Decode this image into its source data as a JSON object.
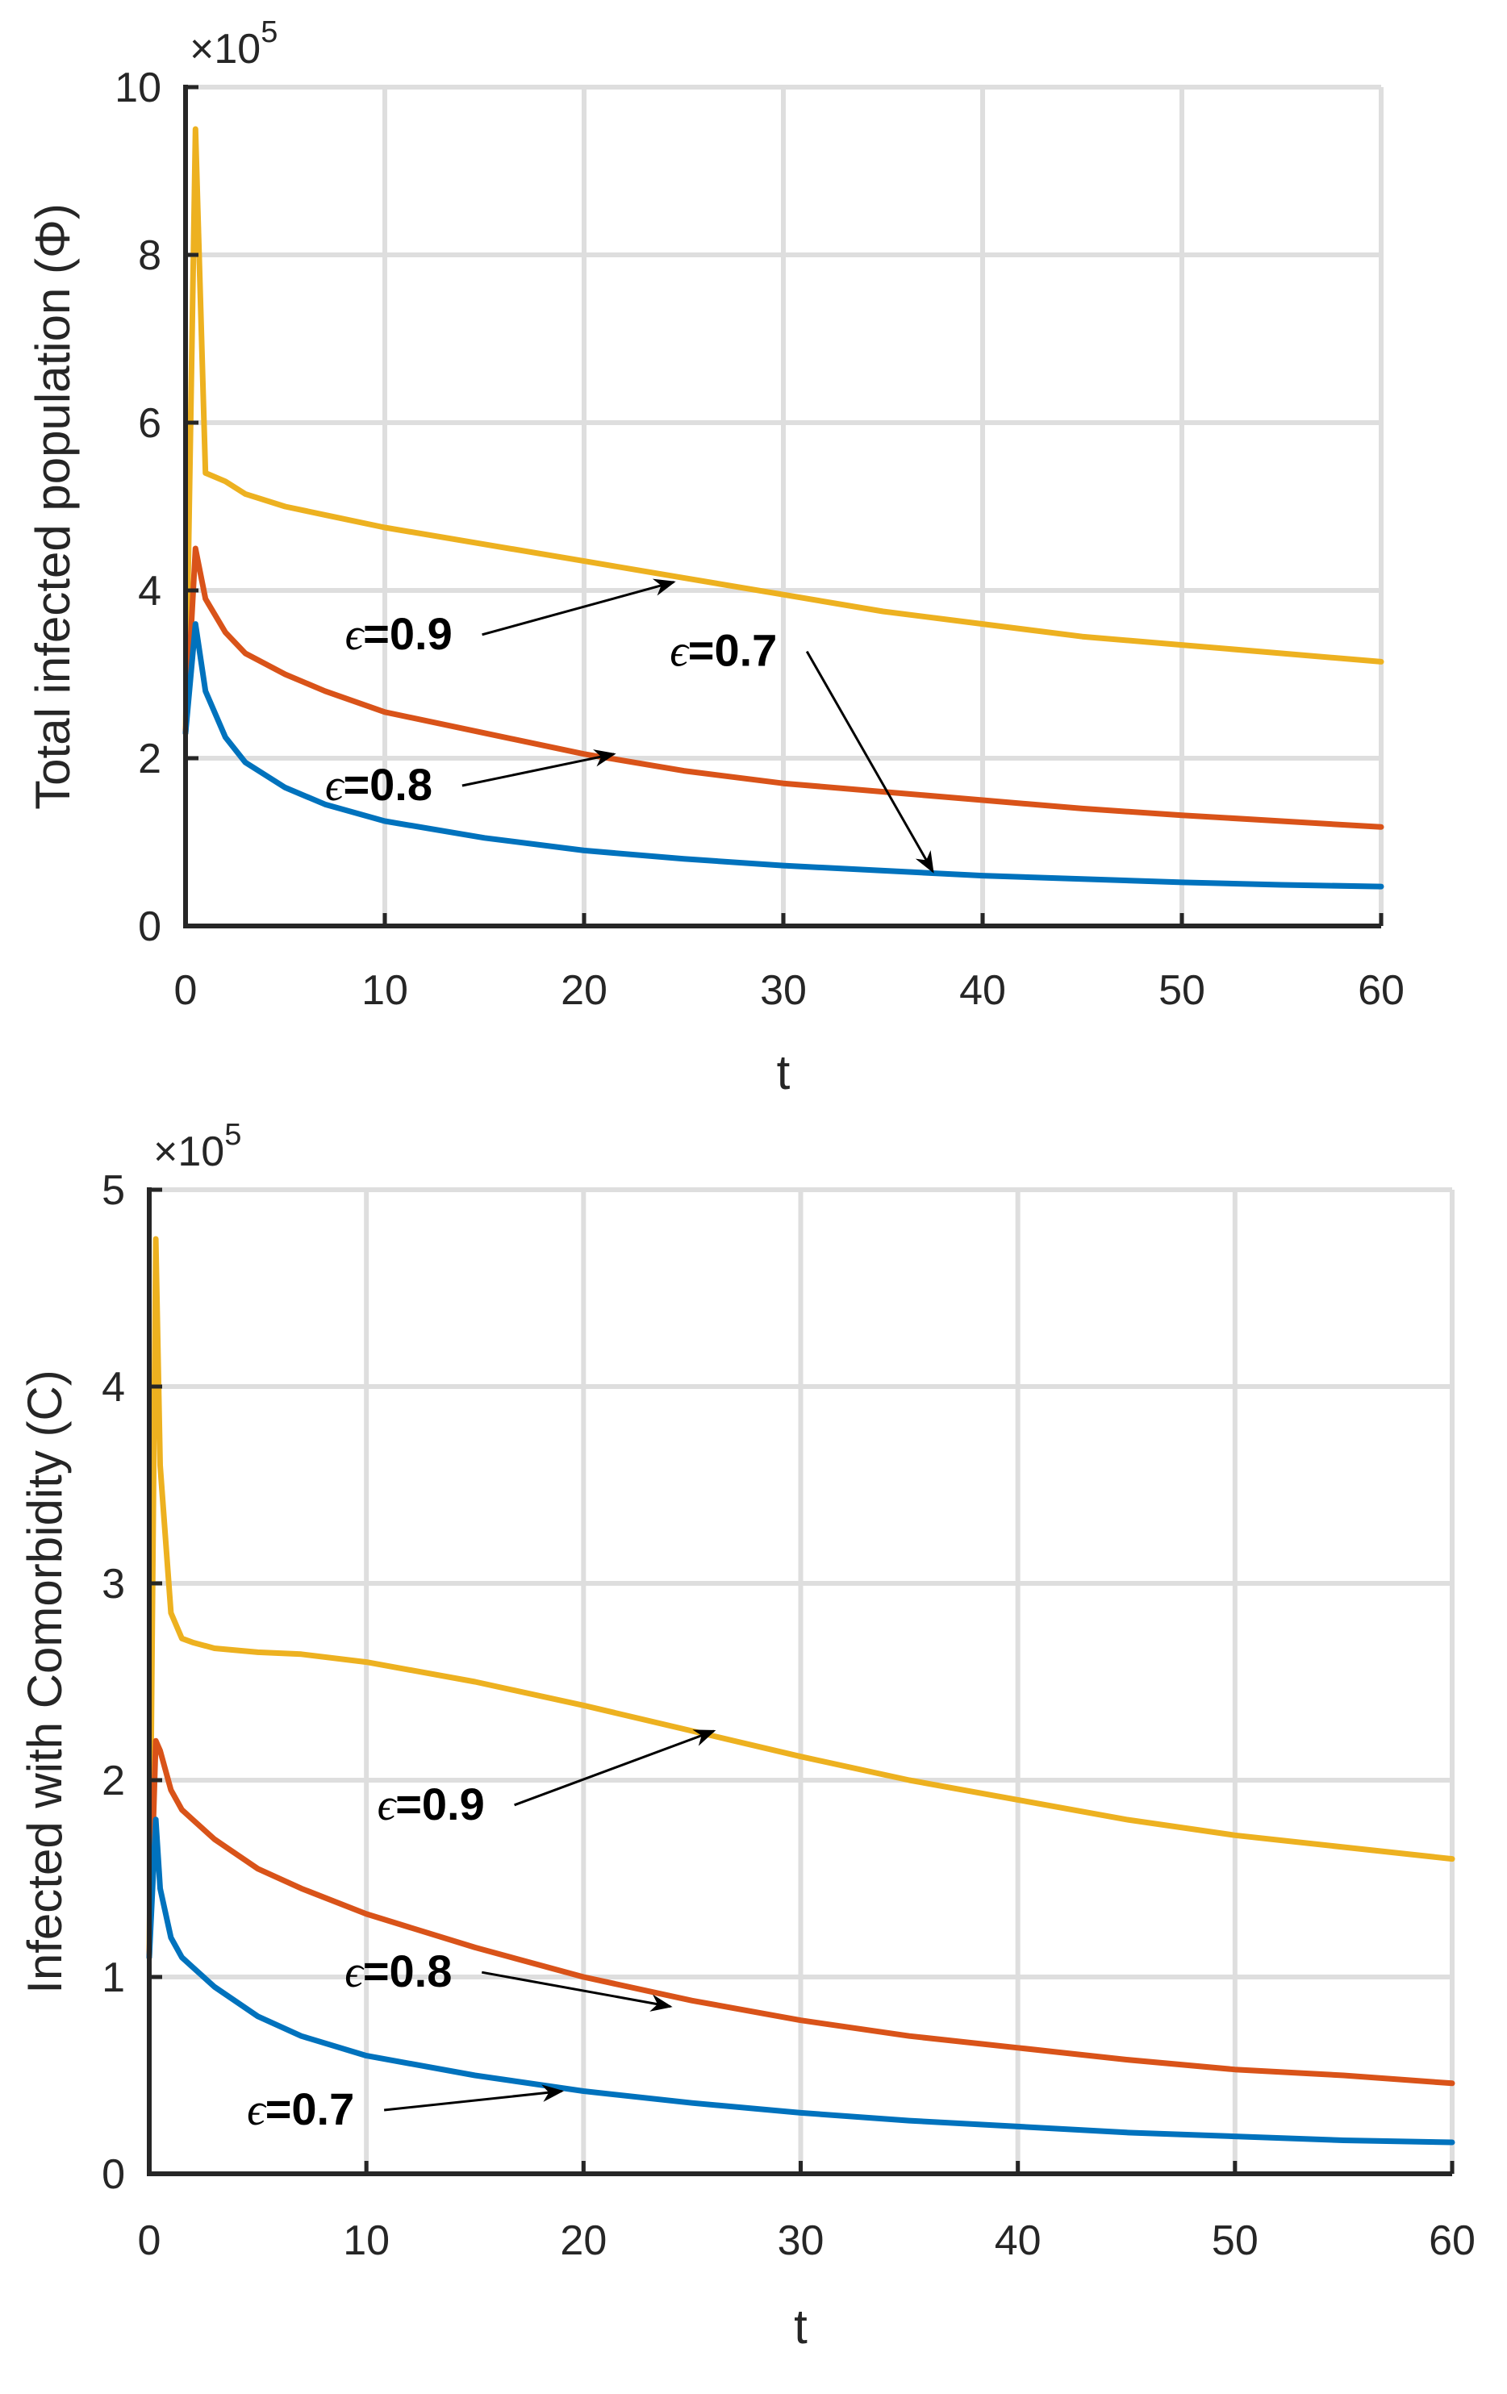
{
  "chart_data": [
    {
      "type": "line",
      "xlabel": "t",
      "ylabel": "Total infected population (Φ)",
      "multiplier": "×10",
      "multiplier_exp": "5",
      "xlim": [
        0,
        60
      ],
      "ylim": [
        0,
        10
      ],
      "xticks": [
        0,
        10,
        20,
        30,
        40,
        50,
        60
      ],
      "yticks": [
        0,
        2,
        4,
        6,
        8,
        10
      ],
      "grid": true,
      "x": [
        0,
        0.5,
        1,
        2,
        3,
        5,
        7,
        10,
        15,
        20,
        25,
        30,
        35,
        40,
        45,
        50,
        55,
        60
      ],
      "series": [
        {
          "color": "#EDB120",
          "values": [
            2.3,
            9.5,
            5.4,
            5.3,
            5.15,
            5.0,
            4.9,
            4.75,
            4.55,
            4.35,
            4.15,
            3.95,
            3.75,
            3.6,
            3.45,
            3.35,
            3.25,
            3.15
          ]
        },
        {
          "color": "#D95319",
          "values": [
            2.3,
            4.5,
            3.9,
            3.5,
            3.25,
            3.0,
            2.8,
            2.55,
            2.3,
            2.05,
            1.85,
            1.7,
            1.6,
            1.5,
            1.4,
            1.32,
            1.25,
            1.18
          ]
        },
        {
          "color": "#0072BD",
          "values": [
            2.3,
            3.6,
            2.8,
            2.25,
            1.95,
            1.65,
            1.45,
            1.25,
            1.05,
            0.9,
            0.8,
            0.72,
            0.66,
            0.6,
            0.56,
            0.52,
            0.49,
            0.47
          ]
        }
      ],
      "annotations": [
        {
          "eps": "ϵ",
          "text": "=0.9",
          "tx": 8.0,
          "ty": 3.3,
          "ax": 24.5,
          "ay": 4.1
        },
        {
          "eps": "ϵ",
          "text": "=0.7",
          "tx": 24.3,
          "ty": 3.1,
          "ax": 37.5,
          "ay": 0.65
        },
        {
          "eps": "ϵ",
          "text": "=0.8",
          "tx": 7.0,
          "ty": 1.5,
          "ax": 21.5,
          "ay": 2.05
        }
      ]
    },
    {
      "type": "line",
      "xlabel": "t",
      "ylabel": "Infected with Comorbidity (C)",
      "multiplier": "×10",
      "multiplier_exp": "5",
      "xlim": [
        0,
        60
      ],
      "ylim": [
        0,
        5
      ],
      "xticks": [
        0,
        10,
        20,
        30,
        40,
        50,
        60
      ],
      "yticks": [
        0,
        1,
        2,
        3,
        4,
        5
      ],
      "grid": true,
      "x": [
        0,
        0.3,
        0.5,
        1,
        1.5,
        2,
        3,
        5,
        7,
        10,
        15,
        20,
        25,
        30,
        35,
        40,
        45,
        50,
        55,
        60
      ],
      "series": [
        {
          "color": "#EDB120",
          "values": [
            1.1,
            4.75,
            3.6,
            2.85,
            2.72,
            2.7,
            2.67,
            2.65,
            2.64,
            2.6,
            2.5,
            2.38,
            2.25,
            2.12,
            2.0,
            1.9,
            1.8,
            1.72,
            1.66,
            1.6
          ]
        },
        {
          "color": "#D95319",
          "values": [
            1.1,
            2.2,
            2.15,
            1.95,
            1.85,
            1.8,
            1.7,
            1.55,
            1.45,
            1.32,
            1.15,
            1.0,
            0.88,
            0.78,
            0.7,
            0.64,
            0.58,
            0.53,
            0.5,
            0.46
          ]
        },
        {
          "color": "#0072BD",
          "values": [
            1.1,
            1.8,
            1.45,
            1.2,
            1.1,
            1.05,
            0.95,
            0.8,
            0.7,
            0.6,
            0.5,
            0.42,
            0.36,
            0.31,
            0.27,
            0.24,
            0.21,
            0.19,
            0.17,
            0.16
          ]
        }
      ],
      "annotations": [
        {
          "eps": "ϵ",
          "text": "=0.9",
          "tx": 10.5,
          "ty": 1.8,
          "ax": 26.0,
          "ay": 2.25
        },
        {
          "eps": "ϵ",
          "text": "=0.8",
          "tx": 9.0,
          "ty": 0.95,
          "ax": 24.0,
          "ay": 0.85
        },
        {
          "eps": "ϵ",
          "text": "=0.7",
          "tx": 4.5,
          "ty": 0.25,
          "ax": 19.0,
          "ay": 0.42
        }
      ]
    }
  ]
}
